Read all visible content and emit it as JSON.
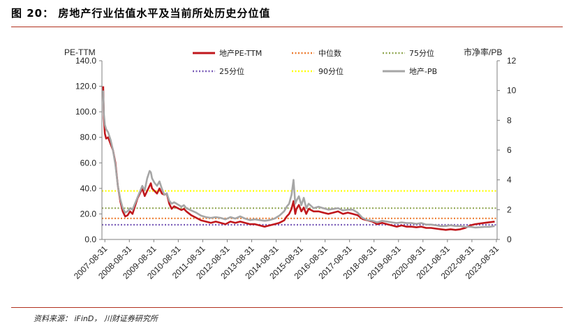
{
  "title": "图 20： 房地产行业估值水平及当前所处历史分位值",
  "source": "资料来源： iFinD， 川财证券研究所",
  "chart_data": {
    "type": "line",
    "y_left_label": "PE-TTM",
    "y_right_label": "市净率/PB",
    "ylim_left": [
      0,
      140
    ],
    "ylim_right": [
      0,
      12
    ],
    "y_left_ticks": [
      "0.0",
      "20.0",
      "40.0",
      "60.0",
      "80.0",
      "100.0",
      "120.0",
      "140.0"
    ],
    "y_right_ticks": [
      "0",
      "2",
      "4",
      "6",
      "8",
      "10",
      "12"
    ],
    "x_ticks": [
      "2007-08-31",
      "2008-08-31",
      "2009-08-31",
      "2010-08-31",
      "2011-08-31",
      "2012-08-31",
      "2013-08-31",
      "2014-08-31",
      "2015-08-31",
      "2016-08-31",
      "2017-08-31",
      "2018-08-31",
      "2019-08-31",
      "2020-08-31",
      "2021-08-31",
      "2022-08-31",
      "2023-08-31"
    ],
    "x_range": [
      2007.55,
      2023.7
    ],
    "legend": [
      {
        "key": "pe",
        "label": "地产PE-TTM",
        "color": "#c0171c",
        "style": "solid"
      },
      {
        "key": "median",
        "label": "中位数",
        "color": "#ed7d31",
        "style": "dotted"
      },
      {
        "key": "p75",
        "label": "75分位",
        "color": "#92a854",
        "style": "dotted"
      },
      {
        "key": "p25",
        "label": "25分位",
        "color": "#7a5cb8",
        "style": "dotted"
      },
      {
        "key": "p90",
        "label": "90分位",
        "color": "#ffff00",
        "style": "dotted"
      },
      {
        "key": "pb",
        "label": "地产-PB",
        "color": "#a6a6a6",
        "style": "solid"
      }
    ],
    "reference_lines": {
      "p25": 11.5,
      "median": 16.5,
      "p75": 24.5,
      "p90": 38.0
    },
    "series": [
      {
        "name": "地产PE-TTM",
        "axis": "left",
        "x": [
          2007.6,
          2007.63,
          2007.67,
          2007.72,
          2007.8,
          2007.9,
          2008.0,
          2008.1,
          2008.2,
          2008.3,
          2008.4,
          2008.5,
          2008.6,
          2008.7,
          2008.8,
          2008.9,
          2009.0,
          2009.1,
          2009.2,
          2009.3,
          2009.4,
          2009.5,
          2009.55,
          2009.6,
          2009.7,
          2009.8,
          2009.9,
          2010.0,
          2010.1,
          2010.2,
          2010.3,
          2010.4,
          2010.5,
          2010.6,
          2010.7,
          2010.8,
          2010.9,
          2011.0,
          2011.2,
          2011.4,
          2011.6,
          2011.8,
          2012.0,
          2012.2,
          2012.4,
          2012.6,
          2012.8,
          2013.0,
          2013.2,
          2013.4,
          2013.6,
          2013.8,
          2014.0,
          2014.2,
          2014.4,
          2014.6,
          2014.8,
          2015.0,
          2015.1,
          2015.2,
          2015.3,
          2015.38,
          2015.45,
          2015.5,
          2015.6,
          2015.7,
          2015.8,
          2015.9,
          2016.0,
          2016.2,
          2016.4,
          2016.6,
          2016.8,
          2017.0,
          2017.2,
          2017.4,
          2017.6,
          2017.8,
          2018.0,
          2018.2,
          2018.4,
          2018.6,
          2018.8,
          2019.0,
          2019.2,
          2019.4,
          2019.6,
          2019.8,
          2020.0,
          2020.2,
          2020.4,
          2020.6,
          2020.8,
          2021.0,
          2021.2,
          2021.4,
          2021.6,
          2021.8,
          2022.0,
          2022.2,
          2022.4,
          2022.6,
          2022.8,
          2023.0,
          2023.2,
          2023.4,
          2023.6
        ],
        "values": [
          120,
          95,
          83,
          79,
          80,
          75,
          70,
          60,
          42,
          30,
          22,
          18,
          19,
          22,
          20,
          26,
          32,
          36,
          40,
          34,
          38,
          42,
          44,
          40,
          38,
          36,
          40,
          36,
          35,
          36,
          28,
          24,
          26,
          25,
          24,
          23,
          24,
          22,
          19,
          17,
          15,
          14,
          13,
          14,
          13,
          12,
          14,
          13,
          14,
          13,
          12,
          12,
          11,
          10,
          11,
          12,
          13,
          15,
          18,
          20,
          24,
          30,
          20,
          24,
          27,
          22,
          25,
          20,
          24,
          22,
          22,
          21,
          20,
          21,
          22,
          20,
          21,
          20,
          19,
          16,
          15,
          14,
          12,
          13,
          12,
          11,
          10,
          11,
          10,
          10,
          9.5,
          10,
          9,
          9,
          8.5,
          8,
          7.5,
          8,
          7.5,
          8,
          9,
          11,
          12,
          12.5,
          13,
          13.5,
          14
        ]
      },
      {
        "name": "地产-PB",
        "axis": "right",
        "x": [
          2007.6,
          2007.63,
          2007.67,
          2007.72,
          2007.8,
          2007.9,
          2008.0,
          2008.1,
          2008.2,
          2008.3,
          2008.4,
          2008.5,
          2008.6,
          2008.7,
          2008.8,
          2008.9,
          2009.0,
          2009.1,
          2009.2,
          2009.3,
          2009.4,
          2009.5,
          2009.55,
          2009.6,
          2009.7,
          2009.8,
          2009.9,
          2010.0,
          2010.1,
          2010.2,
          2010.3,
          2010.4,
          2010.5,
          2010.6,
          2010.7,
          2010.8,
          2010.9,
          2011.0,
          2011.2,
          2011.4,
          2011.6,
          2011.8,
          2012.0,
          2012.2,
          2012.4,
          2012.6,
          2012.8,
          2013.0,
          2013.2,
          2013.4,
          2013.6,
          2013.8,
          2014.0,
          2014.2,
          2014.4,
          2014.6,
          2014.8,
          2015.0,
          2015.1,
          2015.2,
          2015.3,
          2015.38,
          2015.45,
          2015.5,
          2015.6,
          2015.7,
          2015.8,
          2015.9,
          2016.0,
          2016.2,
          2016.4,
          2016.6,
          2016.8,
          2017.0,
          2017.2,
          2017.4,
          2017.6,
          2017.8,
          2018.0,
          2018.2,
          2018.4,
          2018.6,
          2018.8,
          2019.0,
          2019.2,
          2019.4,
          2019.6,
          2019.8,
          2020.0,
          2020.2,
          2020.4,
          2020.6,
          2020.8,
          2021.0,
          2021.2,
          2021.4,
          2021.6,
          2021.8,
          2022.0,
          2022.2,
          2022.4,
          2022.6,
          2022.8,
          2023.0,
          2023.2,
          2023.4,
          2023.6
        ],
        "values": [
          10.0,
          8.4,
          7.7,
          7.4,
          7.2,
          6.7,
          6.0,
          5.0,
          3.6,
          2.7,
          2.1,
          1.8,
          1.9,
          2.1,
          2.0,
          2.4,
          2.8,
          3.2,
          3.6,
          3.3,
          4.1,
          4.6,
          4.5,
          4.1,
          3.8,
          3.6,
          3.9,
          3.4,
          3.0,
          3.1,
          2.6,
          2.4,
          2.5,
          2.4,
          2.3,
          2.2,
          2.3,
          2.1,
          1.95,
          1.8,
          1.6,
          1.5,
          1.45,
          1.5,
          1.45,
          1.35,
          1.5,
          1.4,
          1.55,
          1.4,
          1.3,
          1.35,
          1.3,
          1.25,
          1.3,
          1.4,
          1.6,
          1.9,
          2.2,
          2.4,
          3.0,
          4.0,
          2.4,
          2.6,
          2.9,
          2.3,
          2.8,
          2.1,
          2.4,
          2.1,
          2.2,
          2.1,
          2.0,
          2.05,
          2.1,
          1.95,
          2.0,
          2.0,
          1.8,
          1.45,
          1.3,
          1.25,
          1.15,
          1.25,
          1.2,
          1.15,
          1.1,
          1.15,
          1.1,
          1.1,
          1.05,
          1.1,
          1.0,
          1.0,
          0.95,
          0.9,
          0.9,
          0.95,
          0.9,
          0.9,
          0.85,
          0.85,
          0.8,
          0.82,
          0.85,
          0.85,
          0.9
        ]
      }
    ]
  }
}
